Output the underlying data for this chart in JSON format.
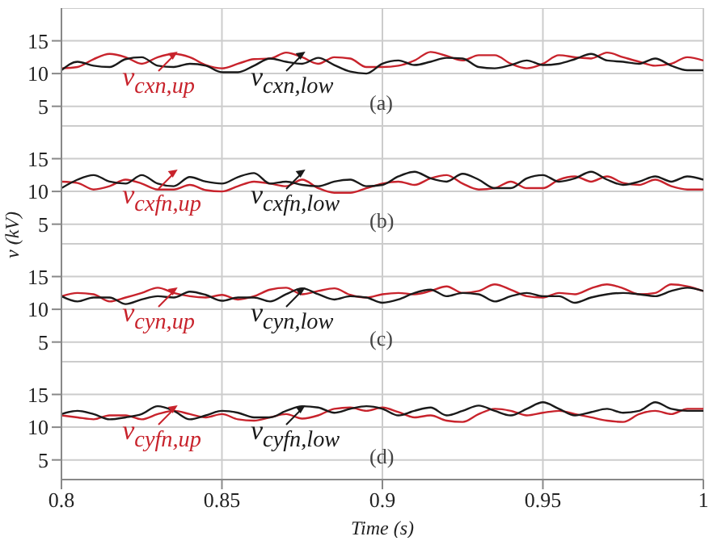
{
  "chart_data": [
    {
      "type": "line",
      "ylabel": "v (kV)",
      "legend": "bottom left",
      "xlim": [
        0.8,
        1
      ],
      "xticks": [
        0.8,
        0.85,
        0.9,
        0.95,
        1
      ],
      "ylim": [
        2,
        20
      ],
      "yticks": [
        5,
        10,
        15
      ],
      "grid": true,
      "tick_labels": "y",
      "annotations": [
        "(a)"
      ],
      "x": [
        0.8,
        0.805,
        0.81,
        0.815,
        0.82,
        0.825,
        0.83,
        0.835,
        0.84,
        0.845,
        0.85,
        0.855,
        0.86,
        0.865,
        0.87,
        0.875,
        0.88,
        0.885,
        0.89,
        0.895,
        0.9,
        0.905,
        0.91,
        0.915,
        0.92,
        0.925,
        0.93,
        0.935,
        0.94,
        0.945,
        0.95,
        0.955,
        0.96,
        0.965,
        0.97,
        0.975,
        0.98,
        0.985,
        0.99,
        0.995,
        1
      ],
      "series": [
        {
          "name": "v$_{cxn,up}$",
          "color": "#c8232c",
          "values": [
            10.8,
            11,
            12.2,
            13,
            12.5,
            11.5,
            12.5,
            13,
            12.5,
            11.3,
            10.8,
            11.5,
            12.2,
            12.3,
            13.2,
            12.5,
            11.5,
            12.5,
            12.3,
            11,
            11,
            11.2,
            12,
            13.3,
            12.7,
            12,
            12.8,
            12.8,
            11.5,
            10.8,
            11.5,
            12.8,
            12.5,
            12.3,
            13.2,
            12.5,
            11.8,
            11.2,
            11.5,
            12.5,
            12
          ]
        },
        {
          "name": "v$_{cxn,low}$",
          "color": "#1a1a1a",
          "values": [
            10.5,
            11.8,
            11.2,
            11,
            12.2,
            12.5,
            11.2,
            11,
            11.5,
            11.2,
            10.2,
            10.2,
            11.2,
            12.3,
            11.8,
            11.5,
            12.4,
            11.3,
            10.3,
            10,
            11.5,
            12,
            11.3,
            11.8,
            12.4,
            12.3,
            11,
            10.8,
            11.3,
            12,
            11.3,
            11.5,
            12.2,
            13,
            12,
            11.8,
            11.5,
            12.3,
            11.2,
            10.5,
            10.5
          ]
        }
      ]
    },
    {
      "type": "line",
      "xlim": [
        0.8,
        1
      ],
      "xticks": [
        0.8,
        0.85,
        0.9,
        0.95,
        1
      ],
      "ylim": [
        2,
        20
      ],
      "yticks": [
        5,
        10,
        15
      ],
      "grid": true,
      "tick_labels": "y",
      "legend": "bottom left",
      "annotations": [
        "(b)"
      ],
      "x": [
        0.8,
        0.805,
        0.81,
        0.815,
        0.82,
        0.825,
        0.83,
        0.835,
        0.84,
        0.845,
        0.85,
        0.855,
        0.86,
        0.865,
        0.87,
        0.875,
        0.88,
        0.885,
        0.89,
        0.895,
        0.9,
        0.905,
        0.91,
        0.915,
        0.92,
        0.925,
        0.93,
        0.935,
        0.94,
        0.945,
        0.95,
        0.955,
        0.96,
        0.965,
        0.97,
        0.975,
        0.98,
        0.985,
        0.99,
        0.995,
        1
      ],
      "series": [
        {
          "name": "v$_{cxfn,up}$",
          "color": "#c8232c",
          "values": [
            11.5,
            11.3,
            10.3,
            10.8,
            11.8,
            11.2,
            10.3,
            10.3,
            11,
            10.2,
            10,
            10.8,
            11.5,
            11.2,
            10.8,
            11.8,
            10.5,
            9.8,
            9.8,
            10.5,
            11.2,
            11.5,
            11,
            12,
            12.5,
            11.2,
            10.3,
            10.5,
            11.5,
            10.5,
            10.5,
            11.8,
            12.3,
            11.5,
            12.3,
            11.3,
            11,
            11.8,
            10.8,
            10.3,
            10.3
          ]
        },
        {
          "name": "v$_{cxfn,low}$",
          "color": "#1a1a1a",
          "values": [
            10.5,
            11.8,
            12.5,
            11.5,
            11.2,
            12.5,
            11.2,
            10.8,
            12.2,
            11.5,
            11.2,
            12.2,
            12.8,
            11.2,
            11.5,
            11,
            10.8,
            11.5,
            11.8,
            10.8,
            11,
            12.3,
            13,
            12,
            11.5,
            12.7,
            11.8,
            10.5,
            10.5,
            12,
            12.5,
            11.5,
            12,
            13,
            11.8,
            11,
            11.5,
            12.3,
            11.5,
            12.3,
            11.8
          ]
        }
      ]
    },
    {
      "type": "line",
      "xlim": [
        0.8,
        1
      ],
      "xticks": [
        0.8,
        0.85,
        0.9,
        0.95,
        1
      ],
      "ylim": [
        2,
        20
      ],
      "yticks": [
        5,
        10,
        15
      ],
      "grid": true,
      "tick_labels": "y",
      "legend": "bottom left",
      "annotations": [
        "(c)"
      ],
      "x": [
        0.8,
        0.805,
        0.81,
        0.815,
        0.82,
        0.825,
        0.83,
        0.835,
        0.84,
        0.845,
        0.85,
        0.855,
        0.86,
        0.865,
        0.87,
        0.875,
        0.88,
        0.885,
        0.89,
        0.895,
        0.9,
        0.905,
        0.91,
        0.915,
        0.92,
        0.925,
        0.93,
        0.935,
        0.94,
        0.945,
        0.95,
        0.955,
        0.96,
        0.965,
        0.97,
        0.975,
        0.98,
        0.985,
        0.99,
        0.995,
        1
      ],
      "series": [
        {
          "name": "v$_{cyn,up}$",
          "color": "#c8232c",
          "values": [
            12,
            12.5,
            12.3,
            11.2,
            11.8,
            12.5,
            13.3,
            12.5,
            12,
            11.8,
            12.2,
            11.5,
            12,
            13,
            13.3,
            12.3,
            12.8,
            13.2,
            12.2,
            11.8,
            12.3,
            12.5,
            12.3,
            12.8,
            13.5,
            12.5,
            12.8,
            13.8,
            13,
            12,
            11.8,
            12.5,
            12.3,
            13.2,
            13.8,
            13.2,
            12.3,
            12.5,
            13.8,
            13.5,
            12.8
          ]
        },
        {
          "name": "v$_{cyn,low}$",
          "color": "#1a1a1a",
          "values": [
            12,
            11.2,
            11.8,
            11.8,
            10.8,
            11.5,
            12,
            11.8,
            12.7,
            12.2,
            11.3,
            11.8,
            11.8,
            11.2,
            12.3,
            13.2,
            12.3,
            11.5,
            12,
            11.8,
            11,
            11.5,
            12.5,
            13,
            12,
            12.5,
            12.3,
            11.2,
            12,
            12.5,
            12,
            12,
            11,
            11.8,
            12.3,
            12.5,
            12.3,
            12,
            12.8,
            13.3,
            12.8
          ]
        }
      ]
    },
    {
      "type": "line",
      "xlabel": "Time (s)",
      "xlim": [
        0.8,
        1
      ],
      "xticks": [
        0.8,
        0.85,
        0.9,
        0.95,
        1
      ],
      "ylim": [
        2,
        20
      ],
      "yticks": [
        5,
        10,
        15
      ],
      "grid": true,
      "legend": "bottom left",
      "annotations": [
        "(d)"
      ],
      "x": [
        0.8,
        0.805,
        0.81,
        0.815,
        0.82,
        0.825,
        0.83,
        0.835,
        0.84,
        0.845,
        0.85,
        0.855,
        0.86,
        0.865,
        0.87,
        0.875,
        0.88,
        0.885,
        0.89,
        0.895,
        0.9,
        0.905,
        0.91,
        0.915,
        0.92,
        0.925,
        0.93,
        0.935,
        0.94,
        0.945,
        0.95,
        0.955,
        0.96,
        0.965,
        0.97,
        0.975,
        0.98,
        0.985,
        0.99,
        0.995,
        1
      ],
      "series": [
        {
          "name": "v$_{cyfn,up}$",
          "color": "#c8232c",
          "values": [
            11.8,
            11.5,
            11.2,
            11.8,
            11.8,
            11.2,
            12,
            12.5,
            12,
            11.5,
            12,
            11.2,
            11,
            11.5,
            12,
            11.3,
            11.8,
            12.8,
            13,
            12.5,
            13,
            12.3,
            11.5,
            11.8,
            11,
            10.8,
            12,
            12.8,
            12.5,
            11.8,
            12.2,
            12.5,
            12,
            11.5,
            11,
            10.8,
            12,
            12.5,
            12,
            12.8,
            12.8
          ]
        },
        {
          "name": "v$_{cyfn,low}$",
          "color": "#1a1a1a",
          "values": [
            12,
            12.5,
            12,
            11.2,
            11.5,
            12,
            13.2,
            12.5,
            11.2,
            11.8,
            12.5,
            12.2,
            11.5,
            11.5,
            12.5,
            13.2,
            13,
            12.2,
            12.8,
            13.2,
            12.8,
            11.8,
            12.5,
            13,
            11.8,
            12.5,
            13.3,
            12.5,
            11.8,
            12.8,
            13.8,
            12.8,
            11.8,
            12.3,
            12.8,
            12.2,
            12.5,
            13.8,
            12.8,
            12.5,
            12.5
          ]
        }
      ]
    }
  ]
}
